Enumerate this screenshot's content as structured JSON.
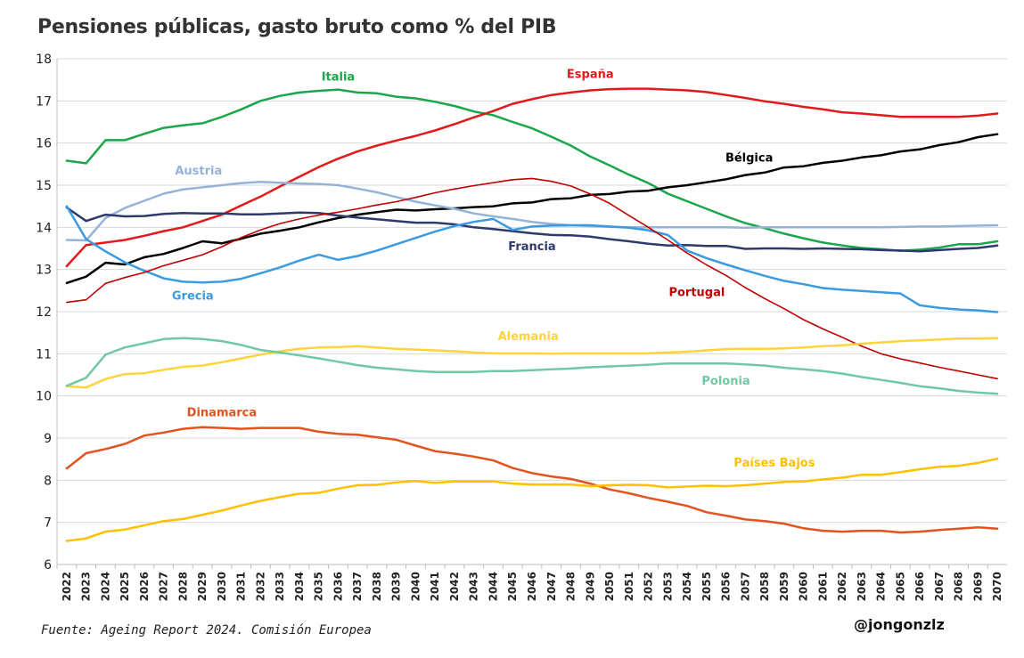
{
  "header": {
    "title": "Pensiones públicas, gasto bruto como % del PIB"
  },
  "footer": {
    "source": "Fuente: Ageing Report 2024. Comisión Europea",
    "credit": "@jongonzlz"
  },
  "chart_data": {
    "type": "line",
    "title": "Pensiones públicas, gasto bruto como % del PIB",
    "xlabel": "",
    "ylabel": "",
    "ylim": [
      6,
      18
    ],
    "yticks": [
      6,
      7,
      8,
      9,
      10,
      11,
      12,
      13,
      14,
      15,
      16,
      17,
      18
    ],
    "grid": "horizontal",
    "legend": "inline labels",
    "x": [
      2022,
      2023,
      2024,
      2025,
      2026,
      2027,
      2028,
      2029,
      2030,
      2031,
      2032,
      2033,
      2034,
      2035,
      2036,
      2037,
      2038,
      2039,
      2040,
      2041,
      2042,
      2043,
      2044,
      2045,
      2046,
      2047,
      2048,
      2049,
      2050,
      2051,
      2052,
      2053,
      2054,
      2055,
      2056,
      2057,
      2058,
      2059,
      2060,
      2061,
      2062,
      2063,
      2064,
      2065,
      2066,
      2067,
      2068,
      2069,
      2070
    ],
    "series": [
      {
        "name": "Italia",
        "color": "#1aa64b",
        "width": 2.5,
        "label_x": 2036.0,
        "label_y": 17.48,
        "values": [
          15.58,
          15.52,
          16.07,
          16.07,
          16.22,
          16.36,
          16.42,
          16.47,
          16.62,
          16.8,
          17.0,
          17.12,
          17.2,
          17.24,
          17.27,
          17.2,
          17.18,
          17.1,
          17.06,
          16.98,
          16.88,
          16.75,
          16.66,
          16.5,
          16.35,
          16.15,
          15.94,
          15.68,
          15.47,
          15.25,
          15.05,
          14.8,
          14.62,
          14.44,
          14.26,
          14.1,
          13.98,
          13.85,
          13.74,
          13.64,
          13.57,
          13.51,
          13.48,
          13.44,
          13.47,
          13.52,
          13.6,
          13.6,
          13.67
        ]
      },
      {
        "name": "España",
        "color": "#e31a1c",
        "width": 2.5,
        "label_x": 2049.0,
        "label_y": 17.55,
        "values": [
          13.08,
          13.58,
          13.64,
          13.7,
          13.8,
          13.91,
          14.0,
          14.15,
          14.3,
          14.52,
          14.73,
          14.97,
          15.2,
          15.43,
          15.63,
          15.8,
          15.94,
          16.06,
          16.17,
          16.3,
          16.45,
          16.61,
          16.76,
          16.93,
          17.04,
          17.14,
          17.2,
          17.25,
          17.28,
          17.29,
          17.29,
          17.27,
          17.25,
          17.21,
          17.14,
          17.07,
          16.99,
          16.93,
          16.86,
          16.8,
          16.73,
          16.7,
          16.66,
          16.62,
          16.62,
          16.62,
          16.62,
          16.65,
          16.7
        ]
      },
      {
        "name": "Bélgica",
        "color": "#000000",
        "width": 2.5,
        "label_x": 2057.2,
        "label_y": 15.56,
        "values": [
          12.68,
          12.83,
          13.16,
          13.12,
          13.29,
          13.37,
          13.51,
          13.67,
          13.62,
          13.73,
          13.85,
          13.92,
          14.0,
          14.12,
          14.22,
          14.3,
          14.36,
          14.42,
          14.4,
          14.43,
          14.45,
          14.48,
          14.5,
          14.57,
          14.59,
          14.67,
          14.69,
          14.77,
          14.79,
          14.85,
          14.87,
          14.95,
          15.0,
          15.07,
          15.14,
          15.24,
          15.3,
          15.42,
          15.45,
          15.53,
          15.58,
          15.66,
          15.71,
          15.8,
          15.85,
          15.95,
          16.02,
          16.14,
          16.21
        ]
      },
      {
        "name": "Austria",
        "color": "#95b3d7",
        "width": 2.5,
        "label_x": 2028.8,
        "label_y": 15.25,
        "values": [
          13.7,
          13.69,
          14.22,
          14.46,
          14.63,
          14.8,
          14.9,
          14.95,
          15.0,
          15.05,
          15.08,
          15.06,
          15.04,
          15.03,
          15.0,
          14.92,
          14.83,
          14.72,
          14.61,
          14.52,
          14.44,
          14.33,
          14.26,
          14.2,
          14.13,
          14.08,
          14.05,
          14.03,
          14.01,
          14.0,
          14.0,
          14.0,
          14.0,
          14.0,
          14.0,
          13.99,
          14.0,
          14.0,
          14.0,
          14.0,
          14.0,
          14.0,
          14.0,
          14.01,
          14.02,
          14.02,
          14.03,
          14.04,
          14.05
        ]
      },
      {
        "name": "Francia",
        "color": "#2e3a6e",
        "width": 2.5,
        "label_x": 2046.0,
        "label_y": 13.46,
        "values": [
          14.47,
          14.15,
          14.3,
          14.26,
          14.27,
          14.32,
          14.34,
          14.33,
          14.33,
          14.31,
          14.31,
          14.33,
          14.35,
          14.34,
          14.28,
          14.23,
          14.19,
          14.15,
          14.11,
          14.11,
          14.07,
          14.0,
          13.96,
          13.91,
          13.86,
          13.82,
          13.81,
          13.78,
          13.72,
          13.67,
          13.61,
          13.57,
          13.58,
          13.56,
          13.56,
          13.49,
          13.5,
          13.5,
          13.49,
          13.5,
          13.49,
          13.48,
          13.46,
          13.45,
          13.43,
          13.46,
          13.49,
          13.51,
          13.57
        ]
      },
      {
        "name": "Grecia",
        "color": "#3a9be0",
        "width": 2.5,
        "label_x": 2028.5,
        "label_y": 12.29,
        "values": [
          14.5,
          13.72,
          13.43,
          13.17,
          12.97,
          12.79,
          12.71,
          12.69,
          12.71,
          12.78,
          12.91,
          13.05,
          13.21,
          13.35,
          13.23,
          13.32,
          13.45,
          13.6,
          13.75,
          13.9,
          14.03,
          14.13,
          14.2,
          13.94,
          14.02,
          14.04,
          14.05,
          14.05,
          14.02,
          13.99,
          13.93,
          13.82,
          13.45,
          13.27,
          13.12,
          12.98,
          12.85,
          12.73,
          12.65,
          12.56,
          12.52,
          12.49,
          12.46,
          12.43,
          12.15,
          12.09,
          12.05,
          12.03,
          11.99
        ]
      },
      {
        "name": "Portugal",
        "color": "#c00000",
        "width": 1.6,
        "label_x": 2054.5,
        "label_y": 12.37,
        "values": [
          12.22,
          12.28,
          12.67,
          12.81,
          12.93,
          13.09,
          13.22,
          13.35,
          13.54,
          13.76,
          13.94,
          14.09,
          14.2,
          14.29,
          14.36,
          14.44,
          14.53,
          14.61,
          14.71,
          14.82,
          14.91,
          14.99,
          15.06,
          15.13,
          15.16,
          15.09,
          14.98,
          14.79,
          14.57,
          14.28,
          14.0,
          13.7,
          13.39,
          13.11,
          12.86,
          12.57,
          12.31,
          12.07,
          11.81,
          11.59,
          11.39,
          11.18,
          11.0,
          10.88,
          10.78,
          10.68,
          10.59,
          10.5,
          10.41
        ]
      },
      {
        "name": "Alemania",
        "color": "#ffd43b",
        "width": 2.5,
        "label_x": 2045.8,
        "label_y": 11.32,
        "values": [
          10.23,
          10.2,
          10.4,
          10.52,
          10.54,
          10.62,
          10.69,
          10.72,
          10.8,
          10.89,
          10.98,
          11.06,
          11.12,
          11.15,
          11.16,
          11.18,
          11.15,
          11.12,
          11.1,
          11.08,
          11.06,
          11.03,
          11.01,
          11.01,
          11.01,
          11.0,
          11.01,
          11.01,
          11.01,
          11.01,
          11.01,
          11.03,
          11.05,
          11.08,
          11.11,
          11.12,
          11.12,
          11.13,
          11.15,
          11.18,
          11.2,
          11.24,
          11.27,
          11.3,
          11.32,
          11.34,
          11.36,
          11.36,
          11.37
        ]
      },
      {
        "name": "Polonia",
        "color": "#70c8a4",
        "width": 2.5,
        "label_x": 2056.0,
        "label_y": 10.27,
        "values": [
          10.24,
          10.43,
          10.98,
          11.15,
          11.25,
          11.35,
          11.37,
          11.35,
          11.3,
          11.21,
          11.09,
          11.03,
          10.96,
          10.89,
          10.81,
          10.73,
          10.67,
          10.63,
          10.59,
          10.57,
          10.57,
          10.57,
          10.59,
          10.59,
          10.61,
          10.63,
          10.65,
          10.68,
          10.7,
          10.72,
          10.74,
          10.77,
          10.77,
          10.77,
          10.77,
          10.75,
          10.72,
          10.67,
          10.63,
          10.59,
          10.53,
          10.45,
          10.38,
          10.31,
          10.23,
          10.18,
          10.12,
          10.08,
          10.05
        ]
      },
      {
        "name": "Dinamarca",
        "color": "#e2531f",
        "width": 2.5,
        "label_x": 2030.0,
        "label_y": 9.52,
        "values": [
          8.28,
          8.64,
          8.74,
          8.86,
          9.06,
          9.13,
          9.22,
          9.26,
          9.24,
          9.22,
          9.24,
          9.24,
          9.24,
          9.15,
          9.1,
          9.08,
          9.02,
          8.96,
          8.82,
          8.69,
          8.63,
          8.56,
          8.47,
          8.29,
          8.17,
          8.09,
          8.03,
          7.92,
          7.78,
          7.69,
          7.58,
          7.49,
          7.39,
          7.24,
          7.16,
          7.07,
          7.03,
          6.97,
          6.86,
          6.8,
          6.78,
          6.8,
          6.8,
          6.76,
          6.78,
          6.82,
          6.85,
          6.88,
          6.85
        ]
      },
      {
        "name": "Países Bajos",
        "color": "#ffc000",
        "width": 2.5,
        "label_x": 2058.5,
        "label_y": 8.32,
        "values": [
          6.56,
          6.62,
          6.78,
          6.83,
          6.93,
          7.03,
          7.08,
          7.18,
          7.28,
          7.4,
          7.51,
          7.6,
          7.68,
          7.7,
          7.8,
          7.88,
          7.89,
          7.95,
          7.98,
          7.94,
          7.97,
          7.97,
          7.97,
          7.92,
          7.9,
          7.9,
          7.9,
          7.86,
          7.88,
          7.89,
          7.88,
          7.83,
          7.85,
          7.87,
          7.86,
          7.88,
          7.92,
          7.96,
          7.97,
          8.02,
          8.06,
          8.13,
          8.13,
          8.19,
          8.26,
          8.32,
          8.34,
          8.41,
          8.51
        ]
      }
    ]
  }
}
